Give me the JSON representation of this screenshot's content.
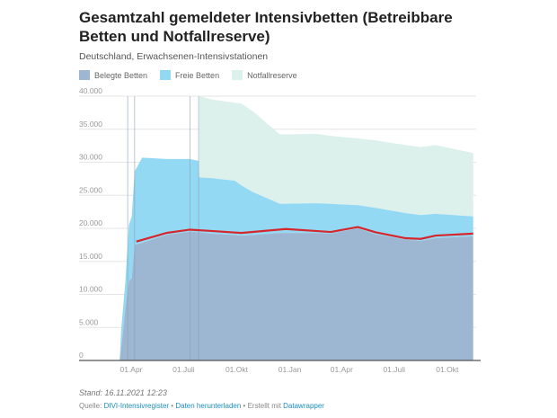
{
  "chart_data": {
    "type": "area",
    "title": "Gesamtzahl gemeldeter Intensivbetten (Betreibbare Betten und Notfallreserve)",
    "subtitle": "Deutschland, Erwachsenen-Intensivstationen",
    "stacked": true,
    "legend": [
      {
        "label": "Belegte Betten",
        "color": "#9db6d2"
      },
      {
        "label": "Freie Betten",
        "color": "#93d9f4"
      },
      {
        "label": "Notfallreserve",
        "color": "#dcf0ec"
      }
    ],
    "legend_placement": "top-left",
    "ylim": [
      0,
      40000
    ],
    "yticks": [
      {
        "value": 0,
        "label": "0"
      },
      {
        "value": 5000,
        "label": "5.000"
      },
      {
        "value": 10000,
        "label": "10.000"
      },
      {
        "value": 15000,
        "label": "15.000"
      },
      {
        "value": 20000,
        "label": "20.000"
      },
      {
        "value": 25000,
        "label": "25.000"
      },
      {
        "value": 30000,
        "label": "30.000"
      },
      {
        "value": 35000,
        "label": "35.000"
      },
      {
        "value": 40000,
        "label": "40.000"
      }
    ],
    "xlim": [
      "2020-03-01",
      "2021-11-25"
    ],
    "xticks": [
      {
        "date": "2020-04-01",
        "label": "01.Apr"
      },
      {
        "date": "2020-07-01",
        "label": "01.Juli"
      },
      {
        "date": "2020-10-01",
        "label": "01.Okt"
      },
      {
        "date": "2021-01-01",
        "label": "01.Jan"
      },
      {
        "date": "2021-04-01",
        "label": "01.Apr"
      },
      {
        "date": "2021-07-01",
        "label": "01.Juli"
      },
      {
        "date": "2021-10-01",
        "label": "01.Okt"
      }
    ],
    "grid": true,
    "points": [
      {
        "date": "2020-03-12",
        "belegt": 0,
        "frei": 0,
        "notfall": 0
      },
      {
        "date": "2020-03-15",
        "belegt": 2000,
        "frei": 3000,
        "notfall": 0
      },
      {
        "date": "2020-03-22",
        "belegt": 8000,
        "frei": 4000,
        "notfall": 0
      },
      {
        "date": "2020-03-28",
        "belegt": 12000,
        "frei": 8500,
        "notfall": 0
      },
      {
        "date": "2020-04-02",
        "belegt": 12500,
        "frei": 9300,
        "notfall": 0
      },
      {
        "date": "2020-04-07",
        "belegt": 17500,
        "frei": 11100,
        "notfall": 0
      },
      {
        "date": "2020-04-20",
        "belegt": 17800,
        "frei": 12900,
        "notfall": 0
      },
      {
        "date": "2020-06-01",
        "belegt": 19000,
        "frei": 11500,
        "notfall": 0
      },
      {
        "date": "2020-07-12",
        "belegt": 19500,
        "frei": 11000,
        "notfall": 0
      },
      {
        "date": "2020-07-27",
        "belegt": 19400,
        "frei": 10800,
        "notfall": 0
      },
      {
        "date": "2020-07-28",
        "belegt": 19400,
        "frei": 8300,
        "notfall": 12300
      },
      {
        "date": "2020-08-18",
        "belegt": 19200,
        "frei": 8400,
        "notfall": 11900
      },
      {
        "date": "2020-09-28",
        "belegt": 19000,
        "frei": 8200,
        "notfall": 11800
      },
      {
        "date": "2020-10-09",
        "belegt": 18900,
        "frei": 7600,
        "notfall": 12400
      },
      {
        "date": "2020-10-29",
        "belegt": 19000,
        "frei": 6500,
        "notfall": 12200
      },
      {
        "date": "2020-12-15",
        "belegt": 19300,
        "frei": 4400,
        "notfall": 10500
      },
      {
        "date": "2021-02-15",
        "belegt": 19300,
        "frei": 4500,
        "notfall": 10500
      },
      {
        "date": "2021-03-13",
        "belegt": 19200,
        "frei": 4500,
        "notfall": 10300
      },
      {
        "date": "2021-04-29",
        "belegt": 20000,
        "frei": 3500,
        "notfall": 10100
      },
      {
        "date": "2021-05-30",
        "belegt": 19100,
        "frei": 4000,
        "notfall": 10200
      },
      {
        "date": "2021-07-21",
        "belegt": 18300,
        "frei": 4000,
        "notfall": 10300
      },
      {
        "date": "2021-08-16",
        "belegt": 18100,
        "frei": 3900,
        "notfall": 10300
      },
      {
        "date": "2021-09-11",
        "belegt": 18500,
        "frei": 3700,
        "notfall": 10400
      },
      {
        "date": "2021-11-15",
        "belegt": 18800,
        "frei": 3000,
        "notfall": 9600
      }
    ],
    "trend_line": {
      "color": "#d7262b",
      "points": [
        {
          "date": "2020-04-10",
          "value": 18000
        },
        {
          "date": "2020-06-01",
          "value": 19300
        },
        {
          "date": "2020-07-12",
          "value": 19800
        },
        {
          "date": "2020-08-18",
          "value": 19600
        },
        {
          "date": "2020-10-09",
          "value": 19300
        },
        {
          "date": "2020-12-25",
          "value": 19900
        },
        {
          "date": "2021-02-15",
          "value": 19600
        },
        {
          "date": "2021-03-13",
          "value": 19450
        },
        {
          "date": "2021-04-29",
          "value": 20200
        },
        {
          "date": "2021-05-30",
          "value": 19400
        },
        {
          "date": "2021-07-21",
          "value": 18500
        },
        {
          "date": "2021-08-16",
          "value": 18400
        },
        {
          "date": "2021-09-11",
          "value": 18900
        },
        {
          "date": "2021-11-15",
          "value": 19200
        }
      ]
    },
    "annotation_lines": [
      "2020-03-26",
      "2020-04-07",
      "2020-07-12",
      "2020-07-27"
    ]
  },
  "footer": {
    "stand": "Stand: 16.11.2021 12:23",
    "quelle_label": "Quelle:",
    "source_link": "DIVI-Intensivregister",
    "separator": "•",
    "download_link": "Daten herunterladen",
    "created_with": "Erstellt mit",
    "datawrapper_link": "Datawrapper"
  }
}
